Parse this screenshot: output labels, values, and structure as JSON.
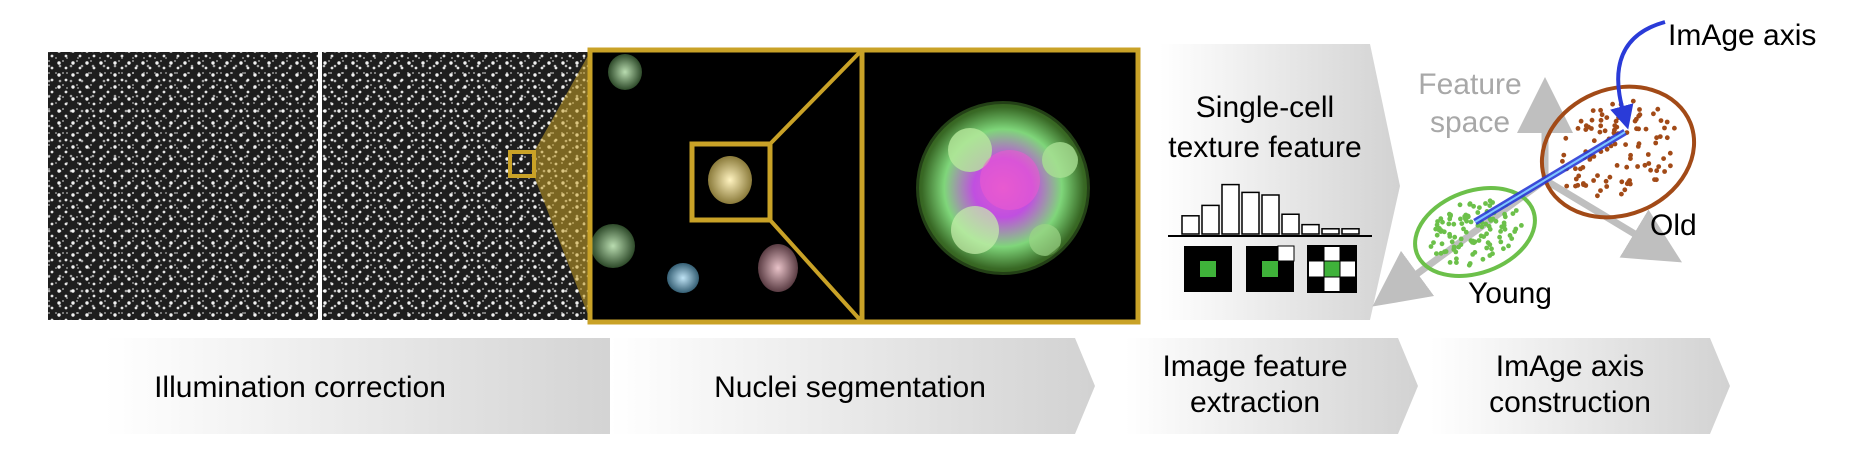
{
  "stages": [
    {
      "label": "Illumination correction"
    },
    {
      "label": "Nuclei segmentation"
    },
    {
      "label_line1": "Image feature",
      "label_line2": "extraction"
    },
    {
      "label_line1": "ImAge axis",
      "label_line2": "construction"
    }
  ],
  "feature_panel": {
    "line1": "Single-cell",
    "line2": "texture feature"
  },
  "histogram_values": [
    0.35,
    0.55,
    0.95,
    0.8,
    0.75,
    0.38,
    0.18,
    0.1,
    0.1
  ],
  "plot": {
    "axis_label_line1": "Feature",
    "axis_label_line2": "space",
    "imag_axis_label": "ImAge axis",
    "old_label": "Old",
    "young_label": "Young"
  },
  "colors": {
    "gold": "#c9a227",
    "young": "#6cc04a",
    "old": "#a24a17",
    "imag_axis": "#2a3bd8",
    "arrow_gray": "#bfbfbf"
  }
}
